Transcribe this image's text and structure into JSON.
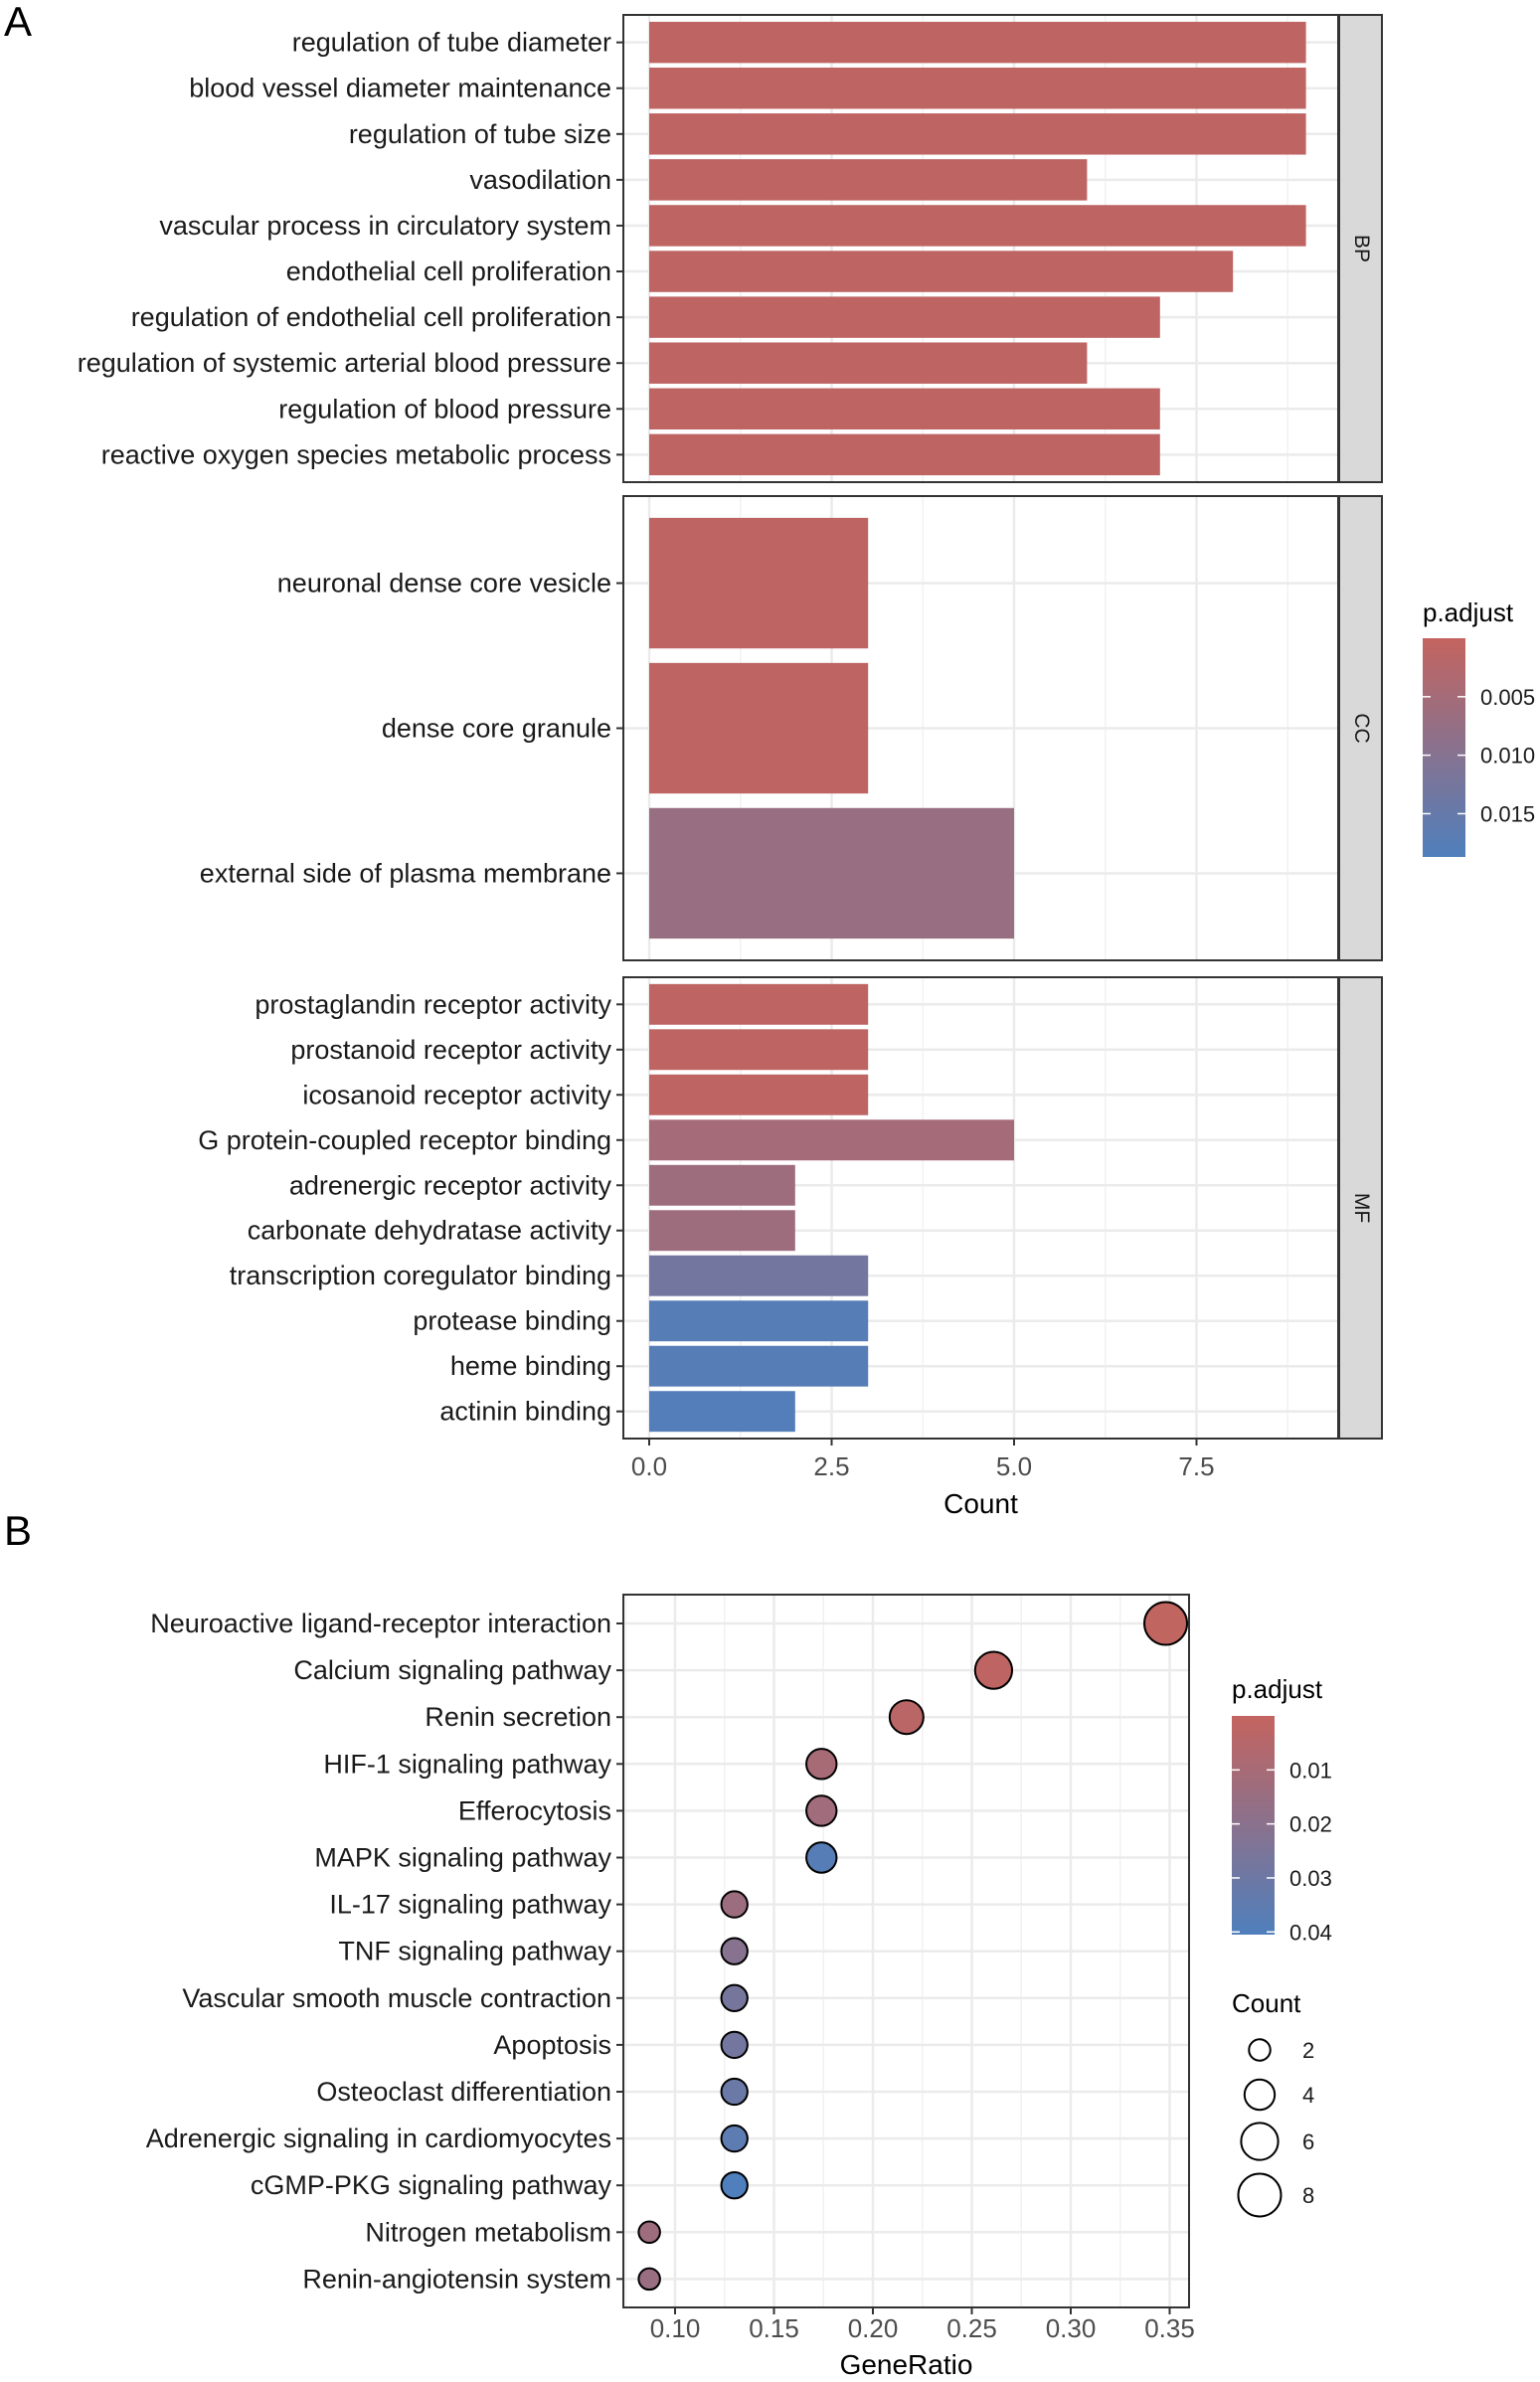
{
  "chart_data": [
    {
      "panel_label": "A",
      "type": "bar",
      "orientation": "horizontal",
      "xlabel": "Count",
      "xticks": [
        "0.0",
        "2.5",
        "5.0",
        "7.5"
      ],
      "xtick_values": [
        0,
        2.5,
        5,
        7.5
      ],
      "grid": true,
      "legend": {
        "title": "p.adjust",
        "placement": "right",
        "ticks": [
          "0.005",
          "0.010",
          "0.015"
        ],
        "tick_values": [
          0.005,
          0.01,
          0.015
        ],
        "range": [
          0.0,
          0.0187
        ],
        "low_color": "#C4645F",
        "high_color": "#4F7FBC"
      },
      "facets": [
        {
          "name": "BP",
          "categories": [
            "regulation of tube diameter",
            "blood vessel diameter maintenance",
            "regulation of tube size",
            "vasodilation",
            "vascular process in circulatory system",
            "endothelial cell proliferation",
            "regulation of endothelial cell proliferation",
            "regulation of systemic arterial blood pressure",
            "regulation of blood pressure",
            "reactive oxygen species metabolic process"
          ],
          "values": [
            9,
            9,
            9,
            6,
            9,
            8,
            7,
            6,
            7,
            7
          ],
          "p_adjust": [
            0.001,
            0.001,
            0.001,
            0.001,
            0.001,
            0.001,
            0.001,
            0.001,
            0.001,
            0.001
          ]
        },
        {
          "name": "CC",
          "categories": [
            "neuronal dense core vesicle",
            "dense core granule",
            "external side of plasma membrane"
          ],
          "values": [
            3,
            3,
            5
          ],
          "p_adjust": [
            0.001,
            0.001,
            0.007
          ]
        },
        {
          "name": "MF",
          "categories": [
            "prostaglandin receptor activity",
            "prostanoid receptor activity",
            "icosanoid receptor activity",
            "G protein-coupled receptor binding",
            "adrenergic receptor activity",
            "carbonate dehydratase activity",
            "transcription coregulator binding",
            "protease binding",
            "heme binding",
            "actinin binding"
          ],
          "values": [
            3,
            3,
            3,
            5,
            2,
            2,
            3,
            3,
            3,
            2
          ],
          "p_adjust": [
            0.001,
            0.001,
            0.001,
            0.005,
            0.006,
            0.006,
            0.013,
            0.0175,
            0.0175,
            0.018
          ]
        }
      ]
    },
    {
      "panel_label": "B",
      "type": "scatter",
      "xlabel": "GeneRatio",
      "xticks": [
        "0.10",
        "0.15",
        "0.20",
        "0.25",
        "0.30",
        "0.35"
      ],
      "xtick_values": [
        0.1,
        0.15,
        0.2,
        0.25,
        0.3,
        0.35
      ],
      "grid": true,
      "categories": [
        "Neuroactive ligand-receptor interaction",
        "Calcium signaling pathway",
        "Renin secretion",
        "HIF-1 signaling pathway",
        "Efferocytosis",
        "MAPK signaling pathway",
        "IL-17 signaling pathway",
        "TNF signaling pathway",
        "Vascular smooth muscle contraction",
        "Apoptosis",
        "Osteoclast differentiation",
        "Adrenergic signaling in cardiomyocytes",
        "cGMP-PKG signaling pathway",
        "Nitrogen metabolism",
        "Renin-angiotensin system"
      ],
      "gene_ratio": [
        0.348,
        0.261,
        0.217,
        0.174,
        0.174,
        0.174,
        0.13,
        0.13,
        0.13,
        0.13,
        0.13,
        0.13,
        0.13,
        0.087,
        0.087
      ],
      "count": [
        8,
        6,
        5,
        4,
        4,
        4,
        3,
        3,
        3,
        3,
        3,
        3,
        3,
        2,
        2
      ],
      "p_adjust": [
        0.001,
        0.002,
        0.003,
        0.01,
        0.012,
        0.038,
        0.014,
        0.021,
        0.027,
        0.028,
        0.031,
        0.036,
        0.041,
        0.013,
        0.015
      ],
      "color_legend": {
        "title": "p.adjust",
        "placement": "right",
        "ticks": [
          "0.01",
          "0.02",
          "0.03",
          "0.04"
        ],
        "tick_values": [
          0.01,
          0.02,
          0.03,
          0.04
        ],
        "range": [
          0.0,
          0.0405
        ],
        "low_color": "#C4645F",
        "high_color": "#4F7FBC"
      },
      "size_legend": {
        "title": "Count",
        "placement": "right",
        "labels": [
          "2",
          "4",
          "6",
          "8"
        ],
        "values": [
          2,
          4,
          6,
          8
        ]
      }
    }
  ]
}
